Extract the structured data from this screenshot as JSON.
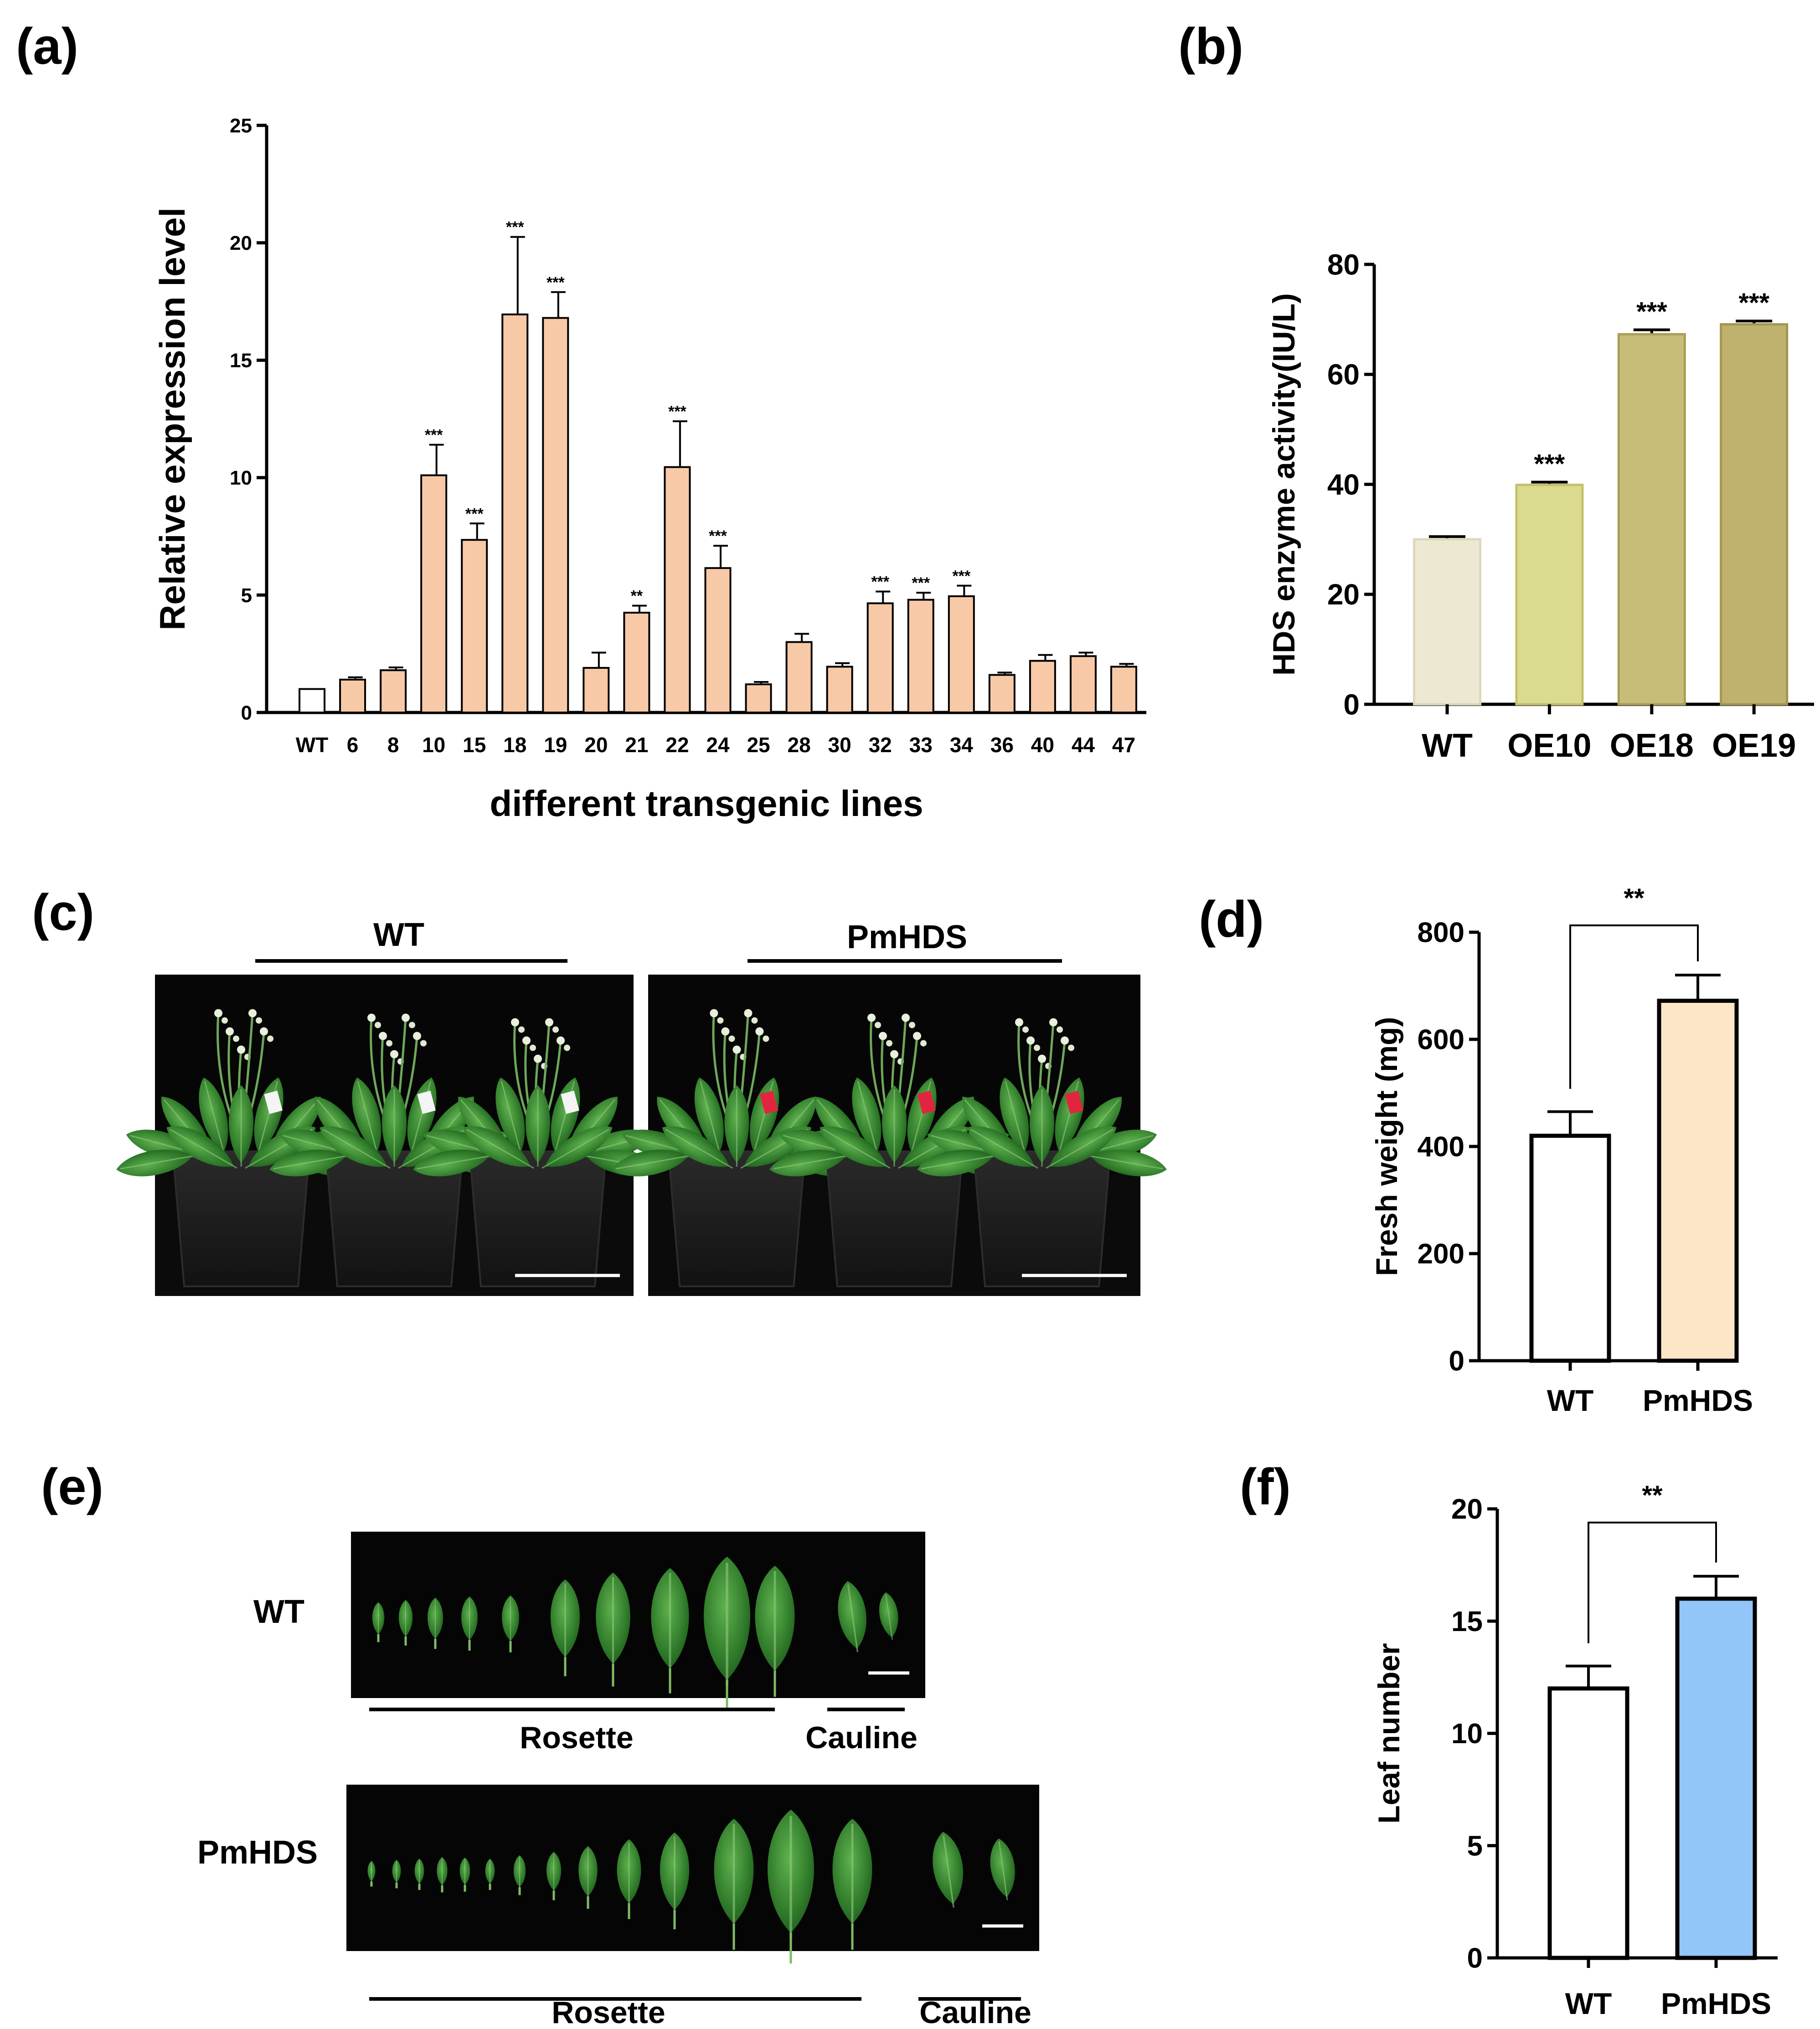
{
  "panels": {
    "a": "(a)",
    "b": "(b)",
    "c": "(c)",
    "d": "(d)",
    "e": "(e)",
    "f": "(f)"
  },
  "chart_data": [
    {
      "id": "a",
      "type": "bar",
      "xlabel": "different transgenic lines",
      "ylabel": "Relative expression level",
      "ylim": [
        0,
        25
      ],
      "yticks": [
        0,
        5,
        10,
        15,
        20,
        25
      ],
      "categories": [
        "WT",
        "6",
        "8",
        "10",
        "15",
        "18",
        "19",
        "20",
        "21",
        "22",
        "24",
        "25",
        "28",
        "30",
        "32",
        "33",
        "34",
        "36",
        "40",
        "44",
        "47"
      ],
      "values": [
        1.0,
        1.4,
        1.8,
        10.1,
        7.35,
        16.95,
        16.8,
        1.9,
        4.25,
        10.45,
        6.15,
        1.2,
        3.0,
        1.95,
        4.65,
        4.8,
        4.95,
        1.6,
        2.2,
        2.4,
        1.95
      ],
      "errors": [
        0,
        0.1,
        0.12,
        1.3,
        0.7,
        3.3,
        1.1,
        0.65,
        0.3,
        1.95,
        0.95,
        0.1,
        0.35,
        0.15,
        0.5,
        0.3,
        0.45,
        0.1,
        0.25,
        0.15,
        0.12
      ],
      "significance": [
        "",
        "",
        "",
        "***",
        "***",
        "***",
        "***",
        "",
        "**",
        "***",
        "***",
        "",
        "",
        "",
        "***",
        "***",
        "***",
        "",
        "",
        "",
        ""
      ],
      "colors": {
        "wt_fill": "#ffffff",
        "bar_fill": "#f8c9a6",
        "stroke": "#000000"
      }
    },
    {
      "id": "b",
      "type": "bar",
      "xlabel": "",
      "ylabel": "HDS enzyme activity(IU/L)",
      "ylim": [
        0,
        80
      ],
      "yticks": [
        0,
        20,
        40,
        60,
        80
      ],
      "categories": [
        "WT",
        "OE10",
        "OE18",
        "OE19"
      ],
      "values": [
        30.0,
        39.9,
        67.3,
        69.1
      ],
      "errors": [
        0.5,
        0.5,
        0.8,
        0.6
      ],
      "significance": [
        "",
        "***",
        "***",
        "***"
      ],
      "colors": {
        "fills": [
          "#ede8d2",
          "#dbdb8f",
          "#c8bd78",
          "#bfb26f"
        ],
        "strokes": [
          "#ddd7bb",
          "#c2bf6c",
          "#aa9d55",
          "#a2964f"
        ]
      }
    },
    {
      "id": "d",
      "type": "bar",
      "xlabel": "",
      "ylabel": "Fresh weight (mg)",
      "ylim": [
        0,
        800
      ],
      "yticks": [
        0,
        200,
        400,
        600,
        800
      ],
      "categories": [
        "WT",
        "PmHDS"
      ],
      "values": [
        420,
        672
      ],
      "errors": [
        45,
        48
      ],
      "bracket_label": "**",
      "colors": {
        "fills": [
          "#ffffff",
          "#fde6c8"
        ],
        "stroke": "#000000"
      }
    },
    {
      "id": "f",
      "type": "bar",
      "xlabel": "",
      "ylabel": "Leaf number",
      "ylim": [
        0,
        20
      ],
      "yticks": [
        0,
        5,
        10,
        15,
        20
      ],
      "categories": [
        "WT",
        "PmHDS"
      ],
      "values": [
        12,
        16
      ],
      "errors": [
        1.0,
        1.0
      ],
      "bracket_label": "**",
      "colors": {
        "fills": [
          "#ffffff",
          "#93c6f8"
        ],
        "stroke": "#000000"
      }
    }
  ],
  "photo_c": {
    "wt_label": "WT",
    "pm_label": "PmHDS"
  },
  "photo_e": {
    "wt_label": "WT",
    "pm_label": "PmHDS",
    "rosette": "Rosette",
    "cauline": "Cauline"
  }
}
